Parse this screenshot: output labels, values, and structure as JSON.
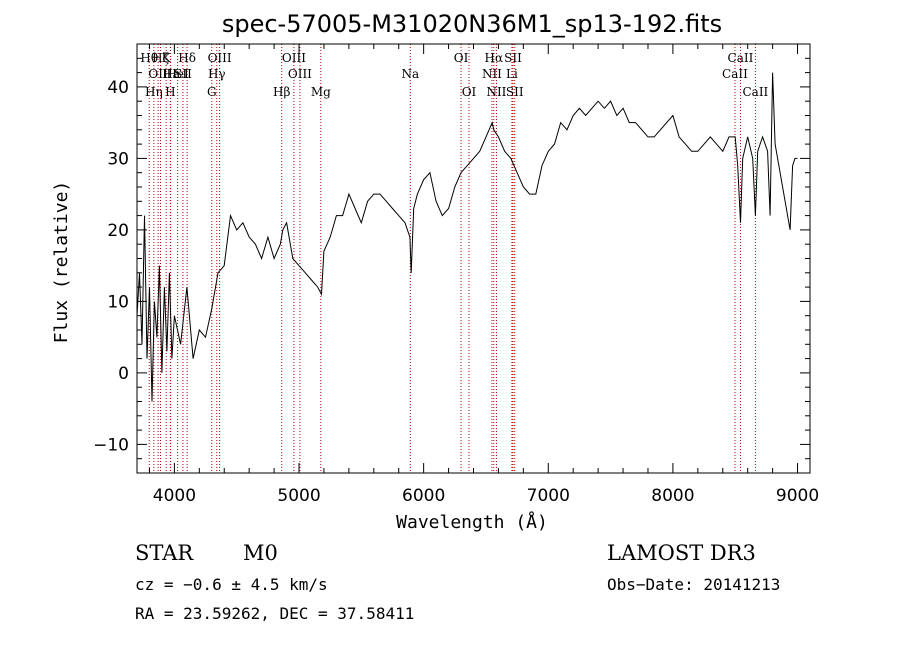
{
  "chart_data": {
    "type": "line",
    "title": "spec-57005-M31020N36M1_sp13-192.fits",
    "xlabel": "Wavelength (Å)",
    "ylabel": "Flux (relative)",
    "xlim": [
      3700,
      9100
    ],
    "ylim": [
      -14,
      46
    ],
    "x_ticks": [
      4000,
      5000,
      6000,
      7000,
      8000,
      9000
    ],
    "y_ticks": [
      -10,
      0,
      10,
      20,
      30,
      40
    ],
    "x_tick_labels": [
      "4000",
      "5000",
      "6000",
      "7000",
      "8000",
      "9000"
    ],
    "y_tick_labels": [
      "−10",
      "0",
      "10",
      "20",
      "30",
      "40"
    ],
    "line_color": "#000000",
    "marker_color": "#b30000",
    "spectrum": {
      "x": [
        3700,
        3720,
        3740,
        3760,
        3780,
        3800,
        3820,
        3840,
        3860,
        3880,
        3900,
        3920,
        3940,
        3960,
        3980,
        4000,
        4050,
        4100,
        4150,
        4200,
        4250,
        4300,
        4350,
        4400,
        4450,
        4500,
        4550,
        4600,
        4650,
        4700,
        4750,
        4800,
        4850,
        4870,
        4900,
        4950,
        5000,
        5050,
        5100,
        5150,
        5180,
        5200,
        5250,
        5300,
        5350,
        5400,
        5450,
        5500,
        5550,
        5600,
        5650,
        5700,
        5750,
        5800,
        5850,
        5890,
        5900,
        5920,
        5950,
        6000,
        6050,
        6100,
        6150,
        6200,
        6250,
        6300,
        6350,
        6400,
        6450,
        6500,
        6550,
        6563,
        6600,
        6650,
        6700,
        6750,
        6800,
        6850,
        6900,
        6950,
        7000,
        7050,
        7100,
        7150,
        7200,
        7250,
        7300,
        7350,
        7400,
        7450,
        7500,
        7550,
        7600,
        7650,
        7700,
        7750,
        7800,
        7850,
        7900,
        7950,
        8000,
        8050,
        8100,
        8150,
        8200,
        8250,
        8300,
        8350,
        8400,
        8450,
        8500,
        8520,
        8542,
        8560,
        8600,
        8640,
        8662,
        8680,
        8700,
        8720,
        8740,
        8760,
        8780,
        8800,
        8820,
        8840,
        8860,
        8880,
        8900,
        8920,
        8940,
        8960,
        8980,
        9000
      ],
      "y": [
        8,
        14,
        4,
        22,
        2,
        12,
        -4,
        10,
        5,
        15,
        0,
        12,
        3,
        14,
        2,
        8,
        4,
        12,
        2,
        6,
        5,
        9,
        14,
        15,
        22,
        20,
        21,
        19,
        18,
        16,
        19,
        16,
        18,
        20,
        21,
        16,
        15,
        14,
        13,
        12,
        11,
        17,
        19,
        22,
        22,
        25,
        23,
        21,
        24,
        25,
        25,
        24,
        23,
        22,
        21,
        19,
        14,
        23,
        25,
        27,
        28,
        24,
        22,
        23,
        26,
        28,
        29,
        30,
        31,
        33,
        35,
        34,
        33,
        31,
        30,
        28,
        26,
        25,
        25,
        29,
        31,
        32,
        35,
        34,
        36,
        37,
        36,
        37,
        38,
        37,
        38,
        36,
        37,
        35,
        35,
        34,
        33,
        33,
        34,
        35,
        36,
        33,
        32,
        31,
        31,
        32,
        33,
        32,
        31,
        33,
        33,
        29,
        21,
        30,
        33,
        30,
        22,
        31,
        32,
        33,
        32,
        31,
        22,
        42,
        32,
        30,
        28,
        26,
        24,
        22,
        20,
        29,
        30,
        30
      ]
    },
    "spectral_lines": [
      {
        "wl": 3798,
        "label": "Hθ",
        "row": 1
      },
      {
        "wl": 3835,
        "label": "Hη",
        "row": 3
      },
      {
        "wl": 3869,
        "label": "OII",
        "row": 2
      },
      {
        "wl": 3889,
        "label": "Hζ",
        "row": 1
      },
      {
        "wl": 3934,
        "label": "K",
        "row": 1
      },
      {
        "wl": 3968,
        "label": "H",
        "row": 3
      },
      {
        "wl": 3970,
        "label": "Hε",
        "row": 2
      },
      {
        "wl": 4026,
        "label": "HeI",
        "row": 2
      },
      {
        "wl": 4069,
        "label": "SII",
        "row": 2
      },
      {
        "wl": 4102,
        "label": "Hδ",
        "row": 1
      },
      {
        "wl": 4300,
        "label": "G",
        "row": 3
      },
      {
        "wl": 4340,
        "label": "Hγ",
        "row": 2
      },
      {
        "wl": 4363,
        "label": "OIII",
        "row": 1
      },
      {
        "wl": 4861,
        "label": "Hβ",
        "row": 3
      },
      {
        "wl": 4959,
        "label": "OIII",
        "row": 1
      },
      {
        "wl": 5007,
        "label": "OIII",
        "row": 2
      },
      {
        "wl": 5175,
        "label": "Mg",
        "row": 3
      },
      {
        "wl": 5893,
        "label": "Na",
        "row": 2
      },
      {
        "wl": 6300,
        "label": "OI",
        "row": 1
      },
      {
        "wl": 6364,
        "label": "OI",
        "row": 3
      },
      {
        "wl": 6548,
        "label": "NII",
        "row": 2
      },
      {
        "wl": 6563,
        "label": "Hα",
        "row": 1
      },
      {
        "wl": 6584,
        "label": "NII",
        "row": 3
      },
      {
        "wl": 6708,
        "label": "Li",
        "row": 2
      },
      {
        "wl": 6717,
        "label": "SII",
        "row": 1
      },
      {
        "wl": 6731,
        "label": "SII",
        "row": 3
      },
      {
        "wl": 8498,
        "label": "CaII",
        "row": 2
      },
      {
        "wl": 8542,
        "label": "CaII",
        "row": 1
      },
      {
        "wl": 8662,
        "label": "CaII",
        "row": 3
      }
    ]
  },
  "info": {
    "object_class": "STAR",
    "subclass": "M0",
    "survey": "LAMOST DR3",
    "cz": "cz = −0.6 ± 4.5 km/s",
    "obs_date": "Obs−Date: 20141213",
    "coords": "RA =  23.59262, DEC =  37.58411"
  }
}
